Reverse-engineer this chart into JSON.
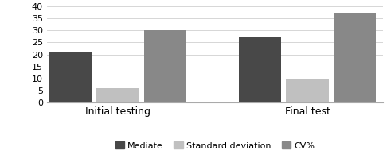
{
  "categories": [
    "Initial testing",
    "Final test"
  ],
  "series": {
    "Mediate": [
      21,
      27
    ],
    "Standard deviation": [
      6,
      10
    ],
    "CV%": [
      30,
      37
    ]
  },
  "colors": {
    "Mediate": "#484848",
    "Standard deviation": "#c0c0c0",
    "CV%": "#888888"
  },
  "ylim": [
    0,
    40
  ],
  "yticks": [
    0,
    5,
    10,
    15,
    20,
    25,
    30,
    35,
    40
  ],
  "bar_width": 0.18,
  "background_color": "#ffffff",
  "tick_fontsize": 8,
  "label_fontsize": 9,
  "legend_fontsize": 8
}
